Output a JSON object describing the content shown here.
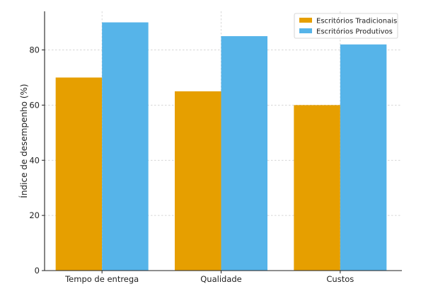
{
  "chart_data": {
    "type": "bar",
    "title": "",
    "xlabel": "",
    "ylabel": "Índice de desempenho (%)",
    "categories": [
      "Tempo de entrega",
      "Qualidade",
      "Custos"
    ],
    "series": [
      {
        "name": "Escritórios Tradicionais",
        "values": [
          70,
          65,
          60
        ],
        "color": "#E69F00"
      },
      {
        "name": "Escritórios Produtivos",
        "values": [
          90,
          85,
          82
        ],
        "color": "#56B4E9"
      }
    ],
    "ylim": [
      0,
      94
    ],
    "yticks": [
      0,
      20,
      40,
      60,
      80
    ],
    "grid": true,
    "legend_position": "top-right"
  }
}
